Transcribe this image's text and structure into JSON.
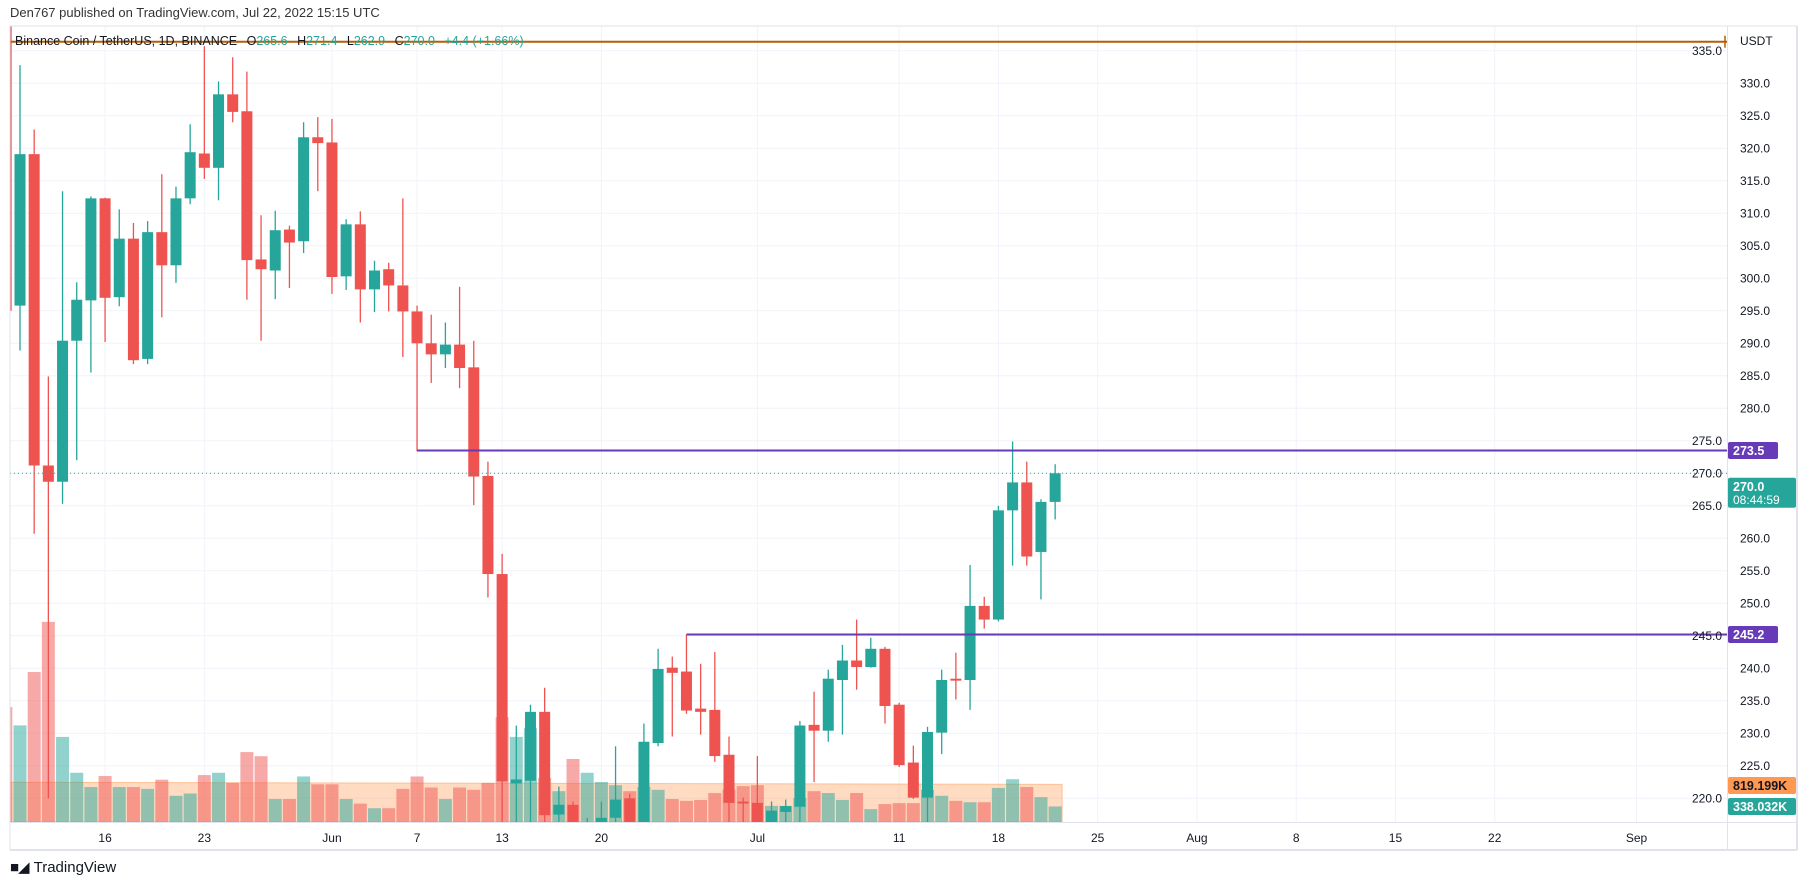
{
  "header": {
    "published": "Den767 published on TradingView.com, Jul 22, 2022 15:15 UTC"
  },
  "legend": {
    "symbol": "Binance Coin / TetherUS, 1D, BINANCE",
    "open_label": "O",
    "open": "265.6",
    "high_label": "H",
    "high": "271.4",
    "low_label": "L",
    "low": "262.9",
    "close_label": "C",
    "close": "270.0",
    "change": "+4.4 (+1.66%)"
  },
  "price_axis": {
    "currency": "USDT",
    "ticks": [
      "335.0",
      "330.0",
      "325.0",
      "320.0",
      "315.0",
      "310.0",
      "305.0",
      "300.0",
      "295.0",
      "290.0",
      "285.0",
      "280.0",
      "275.0",
      "270.0",
      "265.0",
      "260.0",
      "255.0",
      "250.0",
      "245.0",
      "240.0",
      "235.0",
      "230.0",
      "225.0",
      "220.0"
    ],
    "markers": [
      {
        "value": "273.5",
        "color": "#673ab7"
      },
      {
        "value": "270.0",
        "sub": "08:44:59",
        "color": "#26a69a"
      },
      {
        "value": "245.2",
        "color": "#673ab7"
      },
      {
        "value": "819.199K",
        "color": "#ff9850"
      },
      {
        "value": "338.032K",
        "color": "#26a69a"
      }
    ]
  },
  "time_axis": {
    "ticks": [
      {
        "label": "16",
        "date": "2022-05-16"
      },
      {
        "label": "23",
        "date": "2022-05-23"
      },
      {
        "label": "Jun",
        "date": "2022-06-01"
      },
      {
        "label": "7",
        "date": "2022-06-07"
      },
      {
        "label": "13",
        "date": "2022-06-13"
      },
      {
        "label": "20",
        "date": "2022-06-20"
      },
      {
        "label": "Jul",
        "date": "2022-07-01"
      },
      {
        "label": "11",
        "date": "2022-07-11"
      },
      {
        "label": "18",
        "date": "2022-07-18"
      },
      {
        "label": "25",
        "date": "2022-07-25"
      },
      {
        "label": "Aug",
        "date": "2022-08-01"
      },
      {
        "label": "8",
        "date": "2022-08-08"
      },
      {
        "label": "15",
        "date": "2022-08-15"
      },
      {
        "label": "22",
        "date": "2022-08-22"
      },
      {
        "label": "Sep",
        "date": "2022-09-01"
      }
    ]
  },
  "colors": {
    "up": "#26a69a",
    "down": "#ef5350",
    "level": "#673ab7",
    "resistance_top": "#b45f06",
    "volume_ma": "#ff9850"
  },
  "footer": {
    "brand": "TradingView"
  },
  "chart_data": {
    "type": "candlestick",
    "interval": "1D",
    "ylim": [
      218.8,
      337
    ],
    "grid": true,
    "horizontal_lines": [
      {
        "price": 336.4,
        "from": "2022-05-09",
        "color": "#b45f06"
      },
      {
        "price": 273.5,
        "from": "2022-06-07",
        "color": "#673ab7"
      },
      {
        "price": 245.2,
        "from": "2022-06-26",
        "color": "#673ab7"
      }
    ],
    "last_price": 270.0,
    "volume_ma": 819199,
    "columns": [
      "date",
      "open",
      "high",
      "low",
      "close",
      "volume"
    ],
    "candles": [
      [
        "2022-05-09",
        338,
        345,
        295,
        296.2,
        2500000
      ],
      [
        "2022-05-10",
        295.8,
        332.8,
        288.9,
        319.1,
        2100000
      ],
      [
        "2022-05-11",
        319.1,
        322.9,
        260.7,
        271.2,
        3260000
      ],
      [
        "2022-05-12",
        271.2,
        284.9,
        220,
        268.7,
        4350000
      ],
      [
        "2022-05-13",
        268.7,
        313.4,
        265.3,
        290.4,
        1850000
      ],
      [
        "2022-05-14",
        290.4,
        299.4,
        272,
        296.7,
        1070000
      ],
      [
        "2022-05-15",
        296.6,
        312.6,
        285.5,
        312.3,
        760000
      ],
      [
        "2022-05-16",
        312.3,
        312.4,
        290.2,
        297.0,
        1000000
      ],
      [
        "2022-05-17",
        297.1,
        310.6,
        295.7,
        306.1,
        760000
      ],
      [
        "2022-05-18",
        306.1,
        308.5,
        286.8,
        287.4,
        760000
      ],
      [
        "2022-05-19",
        287.6,
        308.8,
        286.8,
        307.1,
        720000
      ],
      [
        "2022-05-20",
        307.1,
        316,
        294,
        302.0,
        920000
      ],
      [
        "2022-05-21",
        302,
        314.1,
        299.3,
        312.3,
        570000
      ],
      [
        "2022-05-22",
        312.3,
        323.7,
        311.4,
        319.4,
        620000
      ],
      [
        "2022-05-23",
        319.2,
        335.7,
        315.3,
        317,
        1020000
      ],
      [
        "2022-05-24",
        317,
        330.3,
        312,
        328.3,
        1070000
      ],
      [
        "2022-05-25",
        328.3,
        334,
        324,
        325.6,
        850000
      ],
      [
        "2022-05-26",
        325.7,
        331.8,
        296.7,
        302.8,
        1520000
      ],
      [
        "2022-05-27",
        302.9,
        309.7,
        290.4,
        301.4,
        1430000
      ],
      [
        "2022-05-28",
        301.2,
        310.4,
        296.8,
        307.4,
        500000
      ],
      [
        "2022-05-29",
        307.5,
        308.1,
        298.5,
        305.5,
        500000
      ],
      [
        "2022-05-30",
        305.7,
        324,
        303.9,
        321.7,
        990000
      ],
      [
        "2022-05-31",
        321.7,
        324.8,
        313.4,
        320.8,
        820000
      ],
      [
        "2022-06-01",
        320.9,
        324.5,
        297.6,
        300.2,
        820000
      ],
      [
        "2022-06-02",
        300.3,
        309.1,
        298.2,
        308.3,
        500000
      ],
      [
        "2022-06-03",
        308.3,
        310.3,
        293.2,
        298.3,
        400000
      ],
      [
        "2022-06-04",
        298.3,
        302.7,
        294.8,
        301.2,
        300000
      ],
      [
        "2022-06-05",
        301.4,
        302.4,
        294.9,
        298.9,
        300000
      ],
      [
        "2022-06-06",
        298.9,
        312.3,
        287.9,
        294.9,
        720000
      ],
      [
        "2022-06-07",
        294.9,
        295.8,
        273.4,
        290,
        990000
      ],
      [
        "2022-06-08",
        290,
        294.4,
        283.9,
        288.3,
        750000
      ],
      [
        "2022-06-09",
        288.3,
        293.2,
        286.2,
        289.8,
        500000
      ],
      [
        "2022-06-10",
        289.8,
        298.7,
        283.1,
        286.2,
        750000
      ],
      [
        "2022-06-11",
        286.3,
        290.4,
        265.1,
        269.5,
        700000
      ],
      [
        "2022-06-12",
        269.6,
        271.8,
        250.9,
        254.5,
        850000
      ],
      [
        "2022-06-13",
        254.5,
        257.6,
        212,
        222.6,
        2280000
      ],
      [
        "2022-06-14",
        222.3,
        231.2,
        211,
        222.9,
        1850000
      ],
      [
        "2022-06-15",
        222.7,
        234.4,
        205,
        233.3,
        2040000
      ],
      [
        "2022-06-16",
        233.3,
        237,
        214,
        217.4,
        960000
      ],
      [
        "2022-06-17",
        217.5,
        221.8,
        214,
        219,
        670000
      ],
      [
        "2022-06-18",
        219,
        219.5,
        183,
        205,
        1370000
      ],
      [
        "2022-06-19",
        205,
        217,
        195,
        216,
        1070000
      ],
      [
        "2022-06-20",
        216,
        219.5,
        208,
        217,
        870000
      ],
      [
        "2022-06-21",
        217,
        228,
        214,
        219.8,
        800000
      ],
      [
        "2022-06-22",
        220,
        220.7,
        212,
        214,
        670000
      ],
      [
        "2022-06-23",
        214,
        231.5,
        212,
        228.7,
        760000
      ],
      [
        "2022-06-24",
        228.5,
        243,
        228,
        239.9,
        700000
      ],
      [
        "2022-06-25",
        240.1,
        241.8,
        229.5,
        239.3,
        500000
      ],
      [
        "2022-06-26",
        239.5,
        245.2,
        233,
        233.5,
        460000
      ],
      [
        "2022-06-27",
        233.8,
        240.7,
        229.8,
        233.3,
        480000
      ],
      [
        "2022-06-28",
        233.6,
        242.5,
        225.6,
        226.5,
        630000
      ],
      [
        "2022-06-29",
        226.7,
        229.5,
        215,
        219.3,
        700000
      ],
      [
        "2022-06-30",
        219.5,
        220.1,
        211,
        219.2,
        780000
      ],
      [
        "2022-07-01",
        219.3,
        226.5,
        210,
        215,
        800000
      ],
      [
        "2022-07-02",
        215,
        219.5,
        213,
        218.1,
        350000
      ],
      [
        "2022-07-03",
        217.9,
        219.8,
        216,
        218.8,
        350000
      ],
      [
        "2022-07-04",
        218.7,
        231.9,
        215,
        231.2,
        520000
      ],
      [
        "2022-07-05",
        231.3,
        236.4,
        222.5,
        230.4,
        670000
      ],
      [
        "2022-07-06",
        230.4,
        239.8,
        228.7,
        238.4,
        630000
      ],
      [
        "2022-07-07",
        238.2,
        243.6,
        229.8,
        241.2,
        480000
      ],
      [
        "2022-07-08",
        241.2,
        247.5,
        236.7,
        240.2,
        630000
      ],
      [
        "2022-07-09",
        240.2,
        244.7,
        240.1,
        243,
        280000
      ],
      [
        "2022-07-10",
        243,
        243.3,
        231.5,
        234.2,
        390000
      ],
      [
        "2022-07-11",
        234.4,
        234.7,
        224.8,
        225.1,
        410000
      ],
      [
        "2022-07-12",
        225.5,
        228.1,
        219.9,
        220.1,
        410000
      ],
      [
        "2022-07-13",
        220.1,
        231,
        214,
        230.2,
        700000
      ],
      [
        "2022-07-14",
        230.1,
        239.8,
        226.8,
        238.2,
        570000
      ],
      [
        "2022-07-15",
        238.4,
        242.4,
        235.2,
        238.1,
        460000
      ],
      [
        "2022-07-16",
        238.2,
        255.9,
        233.6,
        249.6,
        430000
      ],
      [
        "2022-07-17",
        249.6,
        251,
        246.1,
        247.5,
        430000
      ],
      [
        "2022-07-18",
        247.5,
        265,
        247.2,
        264.3,
        740000
      ],
      [
        "2022-07-19",
        264.3,
        274.9,
        255.8,
        268.6,
        930000
      ],
      [
        "2022-07-20",
        268.6,
        271.8,
        255.8,
        257.2,
        760000
      ],
      [
        "2022-07-21",
        257.9,
        266,
        250.6,
        265.6,
        540000
      ],
      [
        "2022-07-22",
        265.6,
        271.4,
        262.9,
        270.0,
        338032
      ]
    ]
  }
}
